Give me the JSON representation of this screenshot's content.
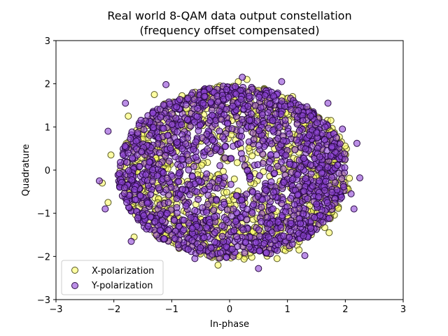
{
  "chart_data": {
    "type": "scatter",
    "title": "Real world 8-QAM data output constellation",
    "subtitle": "(frequency offset compensated)",
    "xlabel": "In-phase",
    "ylabel": "Quadrature",
    "xlim": [
      -3,
      3
    ],
    "ylim": [
      -3,
      3
    ],
    "xticks": [
      -3,
      -2,
      -1,
      0,
      1,
      2,
      3
    ],
    "yticks": [
      -3,
      -2,
      -1,
      0,
      1,
      2,
      3
    ],
    "xtick_labels": [
      "−3",
      "−2",
      "−1",
      "0",
      "1",
      "2",
      "3"
    ],
    "ytick_labels": [
      "−3",
      "−2",
      "−1",
      "0",
      "1",
      "2",
      "3"
    ],
    "grid": false,
    "legend_position": "lower-left",
    "series": [
      {
        "name": "X-polarization",
        "color": "#ffff66",
        "edge_color": "#555522",
        "cloud": {
          "center": [
            0.1,
            -0.05
          ],
          "rx": 2.0,
          "ry": 2.02
        },
        "outliers": [
          [
            -2.2,
            -0.3
          ],
          [
            -2.05,
            0.35
          ],
          [
            -1.65,
            -1.55
          ],
          [
            -1.3,
            1.75
          ],
          [
            -0.2,
            -2.2
          ],
          [
            0.15,
            2.05
          ],
          [
            0.82,
            -2.05
          ],
          [
            1.75,
            1.15
          ],
          [
            1.85,
            0.75
          ],
          [
            2.05,
            -0.45
          ],
          [
            1.72,
            -1.45
          ],
          [
            0.3,
            2.1
          ],
          [
            -1.75,
            1.25
          ],
          [
            -2.1,
            -0.75
          ],
          [
            1.2,
            -1.85
          ]
        ]
      },
      {
        "name": "Y-polarization",
        "color": "#8e44d6",
        "edge_color": "#2a0a44",
        "cloud": {
          "center": [
            0.05,
            -0.05
          ],
          "rx": 1.98,
          "ry": 2.0
        },
        "outliers": [
          [
            -2.25,
            -0.25
          ],
          [
            -2.15,
            -0.9
          ],
          [
            -1.8,
            1.55
          ],
          [
            -1.1,
            1.98
          ],
          [
            0.5,
            -2.28
          ],
          [
            1.3,
            -1.98
          ],
          [
            2.2,
            0.62
          ],
          [
            2.25,
            -0.18
          ],
          [
            2.15,
            -0.9
          ],
          [
            0.22,
            2.15
          ],
          [
            -1.7,
            -1.65
          ],
          [
            1.7,
            1.55
          ],
          [
            -2.1,
            0.9
          ],
          [
            2.1,
            -0.55
          ],
          [
            -0.6,
            -2.05
          ],
          [
            0.9,
            2.05
          ],
          [
            -0.3,
            -1.95
          ],
          [
            1.95,
            0.95
          ]
        ]
      }
    ]
  }
}
